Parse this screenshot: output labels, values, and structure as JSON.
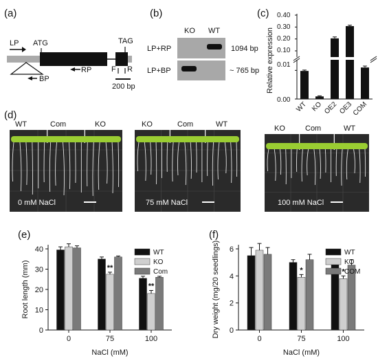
{
  "panel_a": {
    "label": "(a)",
    "lp": "LP",
    "atg": "ATG",
    "tag": "TAG",
    "rp": "RP",
    "bp": "BP",
    "f": "F",
    "r": "R",
    "scale": "200 bp"
  },
  "panel_b": {
    "label": "(b)",
    "lanes": [
      "KO",
      "WT"
    ],
    "rows": [
      "LP+RP",
      "LP+BP"
    ],
    "sizes": [
      "1094 bp",
      "~ 765 bp"
    ]
  },
  "panel_c": {
    "label": "(c)",
    "ylabel": "Relative expression",
    "ticks_upper": [
      "0.40",
      "0.30",
      "0.20",
      "0.10"
    ],
    "ticks_lower": [
      "0.01",
      "0.00"
    ]
  },
  "panel_d": {
    "label": "(d)",
    "plates": [
      {
        "genotypes": [
          "WT",
          "Com",
          "KO"
        ],
        "condition": "0 mM NaCl"
      },
      {
        "genotypes": [
          "KO",
          "Com",
          "WT"
        ],
        "condition": "75 mM NaCl"
      },
      {
        "genotypes": [
          "KO",
          "Com",
          "WT"
        ],
        "condition": "100 mM NaCl"
      }
    ]
  },
  "panel_e": {
    "label": "(e)"
  },
  "panel_f": {
    "label": "(f)"
  },
  "colors": {
    "black": "#111111",
    "light": "#cfcfcf",
    "dark": "#7a7a7a",
    "plate": "#2a2a2a",
    "leaf": "#9acd32"
  },
  "chart_data": [
    {
      "type": "bar",
      "panel": "c",
      "categories": [
        "WT",
        "KO",
        "OE2",
        "OE3",
        "COM"
      ],
      "values": [
        0.0098,
        0.0009,
        0.205,
        0.308,
        0.011
      ],
      "errors": [
        0.0003,
        0.0002,
        0.012,
        0.008,
        0.0005
      ],
      "ylabel": "Relative expression",
      "broken_axis": true,
      "ylim_lower": [
        0,
        0.012
      ],
      "ylim_upper": [
        0.1,
        0.4
      ]
    },
    {
      "type": "bar",
      "panel": "e",
      "categories": [
        "0",
        "75",
        "100"
      ],
      "series": [
        {
          "name": "WT",
          "values": [
            39.5,
            35.0,
            25.5
          ],
          "errors": [
            1.5,
            1.0,
            1.0
          ]
        },
        {
          "name": "KO",
          "values": [
            41.0,
            27.5,
            18.0
          ],
          "errors": [
            1.5,
            1.0,
            1.5
          ]
        },
        {
          "name": "Com",
          "values": [
            40.5,
            36.0,
            26.0
          ],
          "errors": [
            1.0,
            0.5,
            0.5
          ]
        }
      ],
      "significance": [
        {
          "category": "75",
          "series": "KO",
          "mark": "**"
        },
        {
          "category": "100",
          "series": "KO",
          "mark": "**"
        }
      ],
      "xlabel": "NaCl (mM)",
      "ylabel": "Root length (mm)",
      "ylim": [
        0,
        40
      ],
      "yticks": [
        0,
        10,
        20,
        30,
        40
      ]
    },
    {
      "type": "bar",
      "panel": "f",
      "categories": [
        "0",
        "75",
        "100"
      ],
      "series": [
        {
          "name": "WT",
          "values": [
            5.5,
            5.0,
            4.9
          ],
          "errors": [
            0.6,
            0.2,
            0.2
          ]
        },
        {
          "name": "KO",
          "values": [
            5.9,
            3.9,
            3.8
          ],
          "errors": [
            0.5,
            0.2,
            0.2
          ]
        },
        {
          "name": "COM",
          "values": [
            5.6,
            5.2,
            4.8
          ],
          "errors": [
            0.5,
            0.4,
            0.4
          ]
        }
      ],
      "significance": [
        {
          "category": "75",
          "series": "KO",
          "mark": "*"
        },
        {
          "category": "100",
          "series": "KO",
          "mark": "*"
        }
      ],
      "xlabel": "NaCl (mM)",
      "ylabel": "Dry weight (mg/20 seedlings)",
      "ylim": [
        0,
        6
      ],
      "yticks": [
        0,
        2,
        4,
        6
      ]
    }
  ]
}
